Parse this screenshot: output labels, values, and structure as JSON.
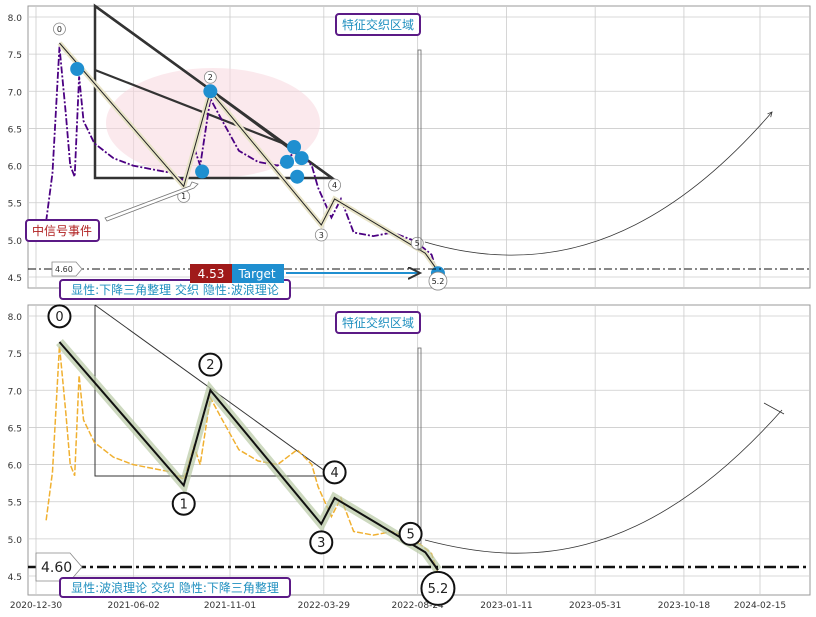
{
  "chart_data": [
    {
      "type": "line",
      "panel": "top",
      "y_ticks": [
        "8.0",
        "7.5",
        "7.0",
        "6.5",
        "6.0",
        "5.5",
        "5.0",
        "4.5"
      ],
      "ylim": [
        4.4,
        8.2
      ],
      "grid": true,
      "annotations": {
        "region_label": "特征交织区域",
        "event_label": "中信号事件",
        "pattern_label": "显性:下降三角整理 交织 隐性:波浪理论",
        "price_tag": "4.53",
        "target_tag": "Target",
        "level_tag": "4.60",
        "wave_labels": [
          "0",
          "1",
          "2",
          "3",
          "4",
          "5",
          "5.2"
        ]
      },
      "level_line": 4.6,
      "series": [
        {
          "color": "#4b0082",
          "points": [
            [
              "2021-01-15",
              5.25
            ],
            [
              "2021-01-25",
              5.9
            ],
            [
              "2021-02-05",
              7.6
            ],
            [
              "2021-02-15",
              6.7
            ],
            [
              "2021-02-22",
              6.0
            ],
            [
              "2021-03-01",
              5.85
            ],
            [
              "2021-03-08",
              7.2
            ],
            [
              "2021-03-15",
              6.6
            ],
            [
              "2021-04-01",
              6.3
            ],
            [
              "2021-05-01",
              6.1
            ],
            [
              "2021-06-01",
              6.0
            ],
            [
              "2021-07-01",
              5.95
            ],
            [
              "2021-08-01",
              5.9
            ],
            [
              "2021-08-20",
              5.8
            ],
            [
              "2021-09-05",
              6.25
            ],
            [
              "2021-09-15",
              6.0
            ],
            [
              "2021-10-01",
              6.9
            ],
            [
              "2021-10-20",
              6.6
            ],
            [
              "2021-11-15",
              6.2
            ],
            [
              "2021-12-15",
              6.05
            ],
            [
              "2022-01-15",
              6.0
            ],
            [
              "2022-02-15",
              6.2
            ],
            [
              "2022-03-10",
              6.0
            ],
            [
              "2022-03-20",
              5.7
            ],
            [
              "2022-04-10",
              5.3
            ],
            [
              "2022-04-25",
              5.55
            ],
            [
              "2022-05-15",
              5.1
            ],
            [
              "2022-06-15",
              5.05
            ],
            [
              "2022-07-15",
              5.1
            ],
            [
              "2022-08-15",
              5.0
            ],
            [
              "2022-09-01",
              4.9
            ],
            [
              "2022-09-15",
              4.8
            ],
            [
              "2022-09-25",
              4.53
            ]
          ]
        }
      ],
      "markers": [
        [
          "2021-03-05",
          7.3
        ],
        [
          "2021-09-18",
          5.92
        ],
        [
          "2021-10-01",
          7.0
        ],
        [
          "2022-02-10",
          6.25
        ],
        [
          "2022-01-30",
          6.05
        ],
        [
          "2022-02-22",
          6.1
        ],
        [
          "2022-02-15",
          5.85
        ],
        [
          "2022-09-25",
          4.55
        ]
      ]
    },
    {
      "type": "line",
      "panel": "bottom",
      "x_ticks": [
        "2020-12-30",
        "2021-06-02",
        "2021-11-01",
        "2022-03-29",
        "2022-08-24",
        "2023-01-11",
        "2023-05-31",
        "2023-10-18",
        "2024-02-15"
      ],
      "y_ticks": [
        "8.0",
        "7.5",
        "7.0",
        "6.5",
        "6.0",
        "5.5",
        "5.0",
        "4.5"
      ],
      "ylim": [
        4.4,
        8.2
      ],
      "grid": true,
      "annotations": {
        "region_label": "特征交织区域",
        "pattern_label": "显性:波浪理论 交织 隐性:下降三角整理",
        "level_tag": "4.60",
        "wave_labels": [
          "0",
          "1",
          "2",
          "3",
          "4",
          "5",
          "5.2"
        ]
      },
      "level_line": 4.6,
      "series": [
        {
          "color": "#f0b030",
          "points": [
            [
              "2021-01-15",
              5.25
            ],
            [
              "2021-01-25",
              5.9
            ],
            [
              "2021-02-05",
              7.6
            ],
            [
              "2021-02-15",
              6.7
            ],
            [
              "2021-02-22",
              6.0
            ],
            [
              "2021-03-01",
              5.85
            ],
            [
              "2021-03-08",
              7.2
            ],
            [
              "2021-03-15",
              6.6
            ],
            [
              "2021-04-01",
              6.3
            ],
            [
              "2021-05-01",
              6.1
            ],
            [
              "2021-06-01",
              6.0
            ],
            [
              "2021-07-01",
              5.95
            ],
            [
              "2021-08-01",
              5.9
            ],
            [
              "2021-08-20",
              5.8
            ],
            [
              "2021-09-05",
              6.25
            ],
            [
              "2021-09-15",
              6.0
            ],
            [
              "2021-10-01",
              6.9
            ],
            [
              "2021-10-20",
              6.6
            ],
            [
              "2021-11-15",
              6.2
            ],
            [
              "2021-12-15",
              6.05
            ],
            [
              "2022-01-15",
              6.0
            ],
            [
              "2022-02-15",
              6.2
            ],
            [
              "2022-03-10",
              6.0
            ],
            [
              "2022-03-20",
              5.7
            ],
            [
              "2022-04-10",
              5.3
            ],
            [
              "2022-04-25",
              5.55
            ],
            [
              "2022-05-15",
              5.1
            ],
            [
              "2022-06-15",
              5.05
            ],
            [
              "2022-07-15",
              5.1
            ],
            [
              "2022-08-15",
              5.0
            ],
            [
              "2022-09-01",
              4.9
            ],
            [
              "2022-09-15",
              4.8
            ],
            [
              "2022-09-25",
              4.53
            ]
          ]
        }
      ]
    }
  ],
  "wave_path": [
    [
      "2021-02-05",
      7.65
    ],
    [
      "2021-08-20",
      5.72
    ],
    [
      "2021-10-01",
      7.0
    ],
    [
      "2022-03-25",
      5.2
    ],
    [
      "2022-04-15",
      5.55
    ],
    [
      "2022-09-05",
      4.82
    ],
    [
      "2022-09-25",
      4.58
    ]
  ],
  "colors": {
    "label_border": "#5b1a86",
    "label_text": "#1f8fbf",
    "event_text": "#b02020",
    "price_bg": "#a01a1a",
    "target_bg": "#1f8fd0",
    "marker": "#1f8fd0",
    "grid": "#cccccc"
  }
}
